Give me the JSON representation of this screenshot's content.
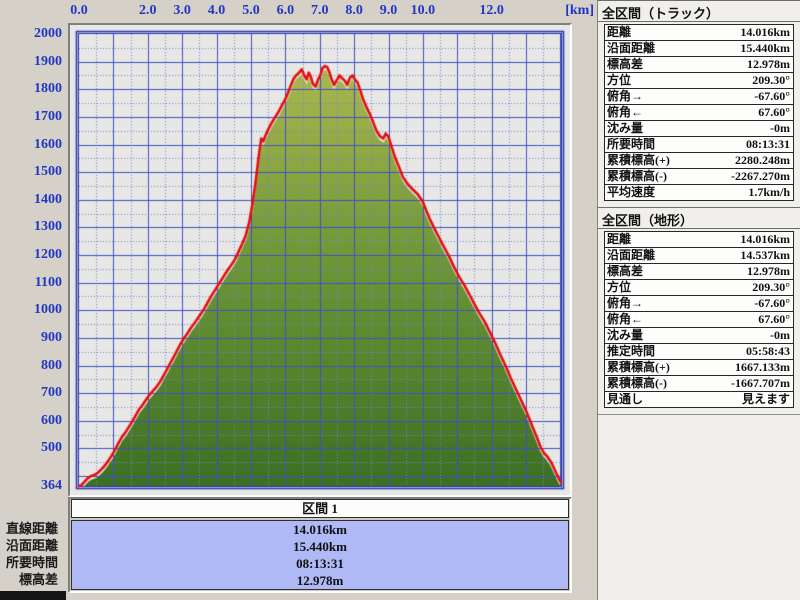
{
  "chart_data": {
    "type": "area",
    "title": "",
    "xlabel": "[km]",
    "ylabel": "",
    "xlim": [
      0,
      14.016
    ],
    "ylim": [
      364,
      2000
    ],
    "x_tick_labels": [
      {
        "text": "0.0",
        "km": 0
      },
      {
        "text": "2.0",
        "km": 2
      },
      {
        "text": "3.0",
        "km": 3
      },
      {
        "text": "4.0",
        "km": 4
      },
      {
        "text": "5.0",
        "km": 5
      },
      {
        "text": "6.0",
        "km": 6
      },
      {
        "text": "7.0",
        "km": 7
      },
      {
        "text": "8.0",
        "km": 8
      },
      {
        "text": "9.0",
        "km": 9
      },
      {
        "text": "10.0",
        "km": 10
      },
      {
        "text": "12.0",
        "km": 12
      }
    ],
    "x_unit_label": "[km]",
    "y_tick_labels": [
      {
        "text": "2000",
        "elev": 2000
      },
      {
        "text": "1900",
        "elev": 1900
      },
      {
        "text": "1800",
        "elev": 1800
      },
      {
        "text": "1700",
        "elev": 1700
      },
      {
        "text": "1600",
        "elev": 1600
      },
      {
        "text": "1500",
        "elev": 1500
      },
      {
        "text": "1400",
        "elev": 1400
      },
      {
        "text": "1300",
        "elev": 1300
      },
      {
        "text": "1200",
        "elev": 1200
      },
      {
        "text": "1100",
        "elev": 1100
      },
      {
        "text": "1000",
        "elev": 1000
      },
      {
        "text": "900",
        "elev": 900
      },
      {
        "text": "800",
        "elev": 800
      },
      {
        "text": "700",
        "elev": 700
      },
      {
        "text": "600",
        "elev": 600
      },
      {
        "text": "500",
        "elev": 500
      },
      {
        "text": "364",
        "elev": 364
      }
    ],
    "grid": {
      "x_solid_step_km": 1.0,
      "x_dotted_step_km": 0.5,
      "y_solid_step_m": 100,
      "y_dotted_step_m": 50,
      "solid_color": "#4050c4",
      "dotted_color": "#7583d8",
      "frame_color": "#2a35b0",
      "plot_bg": "#e7e7e5"
    },
    "series": [
      {
        "name": "track-elevation-profile",
        "color": "#e80d0d",
        "points": [
          [
            0.0,
            364
          ],
          [
            0.06,
            366
          ],
          [
            0.15,
            378
          ],
          [
            0.25,
            392
          ],
          [
            0.35,
            400
          ],
          [
            0.45,
            404
          ],
          [
            0.55,
            412
          ],
          [
            0.65,
            424
          ],
          [
            0.75,
            438
          ],
          [
            0.85,
            455
          ],
          [
            0.95,
            474
          ],
          [
            1.05,
            496
          ],
          [
            1.15,
            520
          ],
          [
            1.25,
            542
          ],
          [
            1.35,
            558
          ],
          [
            1.45,
            578
          ],
          [
            1.55,
            598
          ],
          [
            1.65,
            620
          ],
          [
            1.75,
            642
          ],
          [
            1.85,
            658
          ],
          [
            1.95,
            676
          ],
          [
            2.05,
            694
          ],
          [
            2.15,
            708
          ],
          [
            2.25,
            722
          ],
          [
            2.35,
            740
          ],
          [
            2.45,
            762
          ],
          [
            2.55,
            784
          ],
          [
            2.65,
            808
          ],
          [
            2.75,
            830
          ],
          [
            2.85,
            854
          ],
          [
            2.95,
            878
          ],
          [
            3.05,
            898
          ],
          [
            3.15,
            916
          ],
          [
            3.25,
            936
          ],
          [
            3.35,
            952
          ],
          [
            3.45,
            970
          ],
          [
            3.55,
            988
          ],
          [
            3.65,
            1008
          ],
          [
            3.75,
            1030
          ],
          [
            3.85,
            1052
          ],
          [
            3.95,
            1072
          ],
          [
            4.05,
            1092
          ],
          [
            4.15,
            1112
          ],
          [
            4.25,
            1132
          ],
          [
            4.35,
            1150
          ],
          [
            4.45,
            1168
          ],
          [
            4.55,
            1188
          ],
          [
            4.65,
            1215
          ],
          [
            4.75,
            1242
          ],
          [
            4.85,
            1272
          ],
          [
            4.95,
            1318
          ],
          [
            5.05,
            1390
          ],
          [
            5.12,
            1448
          ],
          [
            5.18,
            1510
          ],
          [
            5.24,
            1570
          ],
          [
            5.3,
            1622
          ],
          [
            5.36,
            1612
          ],
          [
            5.42,
            1632
          ],
          [
            5.5,
            1654
          ],
          [
            5.6,
            1678
          ],
          [
            5.7,
            1698
          ],
          [
            5.8,
            1718
          ],
          [
            5.9,
            1742
          ],
          [
            6.0,
            1764
          ],
          [
            6.08,
            1788
          ],
          [
            6.16,
            1814
          ],
          [
            6.24,
            1838
          ],
          [
            6.32,
            1852
          ],
          [
            6.4,
            1860
          ],
          [
            6.48,
            1872
          ],
          [
            6.55,
            1850
          ],
          [
            6.62,
            1836
          ],
          [
            6.68,
            1860
          ],
          [
            6.74,
            1846
          ],
          [
            6.8,
            1820
          ],
          [
            6.88,
            1810
          ],
          [
            6.95,
            1834
          ],
          [
            7.02,
            1852
          ],
          [
            7.08,
            1876
          ],
          [
            7.15,
            1884
          ],
          [
            7.22,
            1880
          ],
          [
            7.28,
            1862
          ],
          [
            7.35,
            1834
          ],
          [
            7.42,
            1816
          ],
          [
            7.5,
            1834
          ],
          [
            7.58,
            1850
          ],
          [
            7.65,
            1840
          ],
          [
            7.72,
            1832
          ],
          [
            7.8,
            1816
          ],
          [
            7.88,
            1842
          ],
          [
            7.95,
            1850
          ],
          [
            8.02,
            1836
          ],
          [
            8.1,
            1824
          ],
          [
            8.18,
            1796
          ],
          [
            8.26,
            1764
          ],
          [
            8.35,
            1738
          ],
          [
            8.45,
            1712
          ],
          [
            8.55,
            1682
          ],
          [
            8.65,
            1650
          ],
          [
            8.75,
            1630
          ],
          [
            8.85,
            1622
          ],
          [
            8.92,
            1640
          ],
          [
            9.0,
            1628
          ],
          [
            9.1,
            1588
          ],
          [
            9.2,
            1550
          ],
          [
            9.3,
            1520
          ],
          [
            9.42,
            1482
          ],
          [
            9.55,
            1458
          ],
          [
            9.7,
            1438
          ],
          [
            9.85,
            1420
          ],
          [
            10.0,
            1392
          ],
          [
            10.1,
            1360
          ],
          [
            10.2,
            1330
          ],
          [
            10.32,
            1300
          ],
          [
            10.45,
            1268
          ],
          [
            10.6,
            1232
          ],
          [
            10.75,
            1198
          ],
          [
            10.9,
            1158
          ],
          [
            11.05,
            1122
          ],
          [
            11.2,
            1092
          ],
          [
            11.35,
            1058
          ],
          [
            11.5,
            1022
          ],
          [
            11.65,
            988
          ],
          [
            11.8,
            958
          ],
          [
            11.95,
            920
          ],
          [
            12.1,
            882
          ],
          [
            12.25,
            840
          ],
          [
            12.4,
            800
          ],
          [
            12.55,
            756
          ],
          [
            12.7,
            716
          ],
          [
            12.85,
            676
          ],
          [
            13.0,
            636
          ],
          [
            13.15,
            590
          ],
          [
            13.3,
            544
          ],
          [
            13.42,
            506
          ],
          [
            13.52,
            484
          ],
          [
            13.62,
            470
          ],
          [
            13.72,
            452
          ],
          [
            13.8,
            432
          ],
          [
            13.88,
            410
          ],
          [
            13.95,
            392
          ],
          [
            14.016,
            377
          ]
        ]
      },
      {
        "name": "terrain-area",
        "style": "area-gradient",
        "derived_from": "track-elevation-profile",
        "offset_m": -10,
        "edge_color": "#e0e1d4",
        "gradient_colors": [
          "#adb84f",
          "#6f9838",
          "#3c7022"
        ]
      }
    ]
  },
  "section_panel": {
    "header": "区間 1",
    "rows": [
      {
        "label": "直線距離",
        "value": "14.016km"
      },
      {
        "label": "沿面距離",
        "value": "15.440km"
      },
      {
        "label": "所要時間",
        "value": "08:13:31"
      },
      {
        "label": "標高差",
        "value": "12.978m"
      }
    ]
  },
  "right_panels": [
    {
      "title": "全区間（トラック）",
      "rows": [
        {
          "label": "距離",
          "value": "14.016km"
        },
        {
          "label": "沿面距離",
          "value": "15.440km"
        },
        {
          "label": "標高差",
          "value": "12.978m"
        },
        {
          "label": "方位",
          "value": "209.30°"
        },
        {
          "label": "俯角→",
          "value": "-67.60°"
        },
        {
          "label": "俯角←",
          "value": "67.60°"
        },
        {
          "label": "沈み量",
          "value": "-0m"
        },
        {
          "label": "所要時間",
          "value": "08:13:31"
        },
        {
          "label": "累積標高(+)",
          "value": "2280.248m"
        },
        {
          "label": "累積標高(-)",
          "value": "-2267.270m"
        },
        {
          "label": "平均速度",
          "value": "1.7km/h"
        }
      ]
    },
    {
      "title": "全区間（地形）",
      "rows": [
        {
          "label": "距離",
          "value": "14.016km"
        },
        {
          "label": "沿面距離",
          "value": "14.537km"
        },
        {
          "label": "標高差",
          "value": "12.978m"
        },
        {
          "label": "方位",
          "value": "209.30°"
        },
        {
          "label": "俯角→",
          "value": "-67.60°"
        },
        {
          "label": "俯角←",
          "value": "67.60°"
        },
        {
          "label": "沈み量",
          "value": "-0m"
        },
        {
          "label": "推定時間",
          "value": "05:58:43"
        },
        {
          "label": "累積標高(+)",
          "value": "1667.133m"
        },
        {
          "label": "累積標高(-)",
          "value": "-1667.707m"
        },
        {
          "label": "見通し",
          "value": "見えます"
        }
      ]
    }
  ],
  "colors": {
    "window_bg": "#d5d1c8",
    "panel_bg": "#f0efeb",
    "axis_label": "#2236c4",
    "track_line": "#e80d0d",
    "section_values_bg": "#aeb9f6",
    "table_row_bg": "#fdfdfc"
  }
}
